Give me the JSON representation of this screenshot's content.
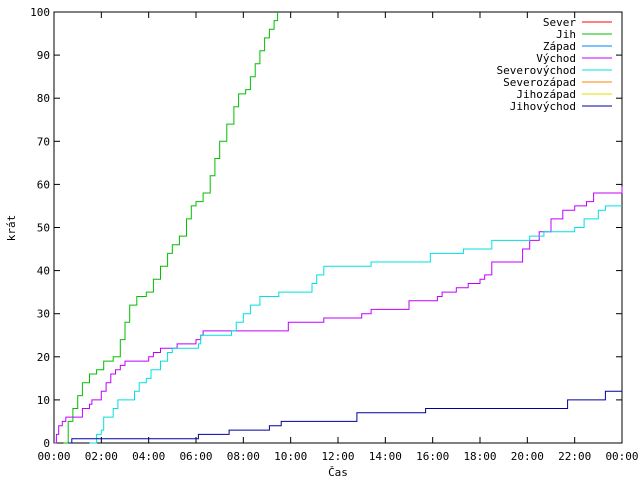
{
  "chart_data": {
    "type": "line",
    "title": "",
    "xlabel": "Čas",
    "ylabel": "krát",
    "xlim": [
      0,
      24
    ],
    "ylim": [
      0,
      100
    ],
    "x_ticks": [
      "00:00",
      "02:00",
      "04:00",
      "06:00",
      "08:00",
      "10:00",
      "12:00",
      "14:00",
      "16:00",
      "18:00",
      "20:00",
      "22:00",
      "00:00"
    ],
    "y_ticks": [
      0,
      10,
      20,
      30,
      40,
      50,
      60,
      70,
      80,
      90,
      100
    ],
    "grid": false,
    "legend_position": "top-right",
    "series": [
      {
        "name": "Sever",
        "color": "#ff0000",
        "points": []
      },
      {
        "name": "Jih",
        "color": "#00c000",
        "points": [
          [
            0.4,
            0
          ],
          [
            0.6,
            5
          ],
          [
            0.8,
            8
          ],
          [
            1.0,
            11
          ],
          [
            1.2,
            14
          ],
          [
            1.5,
            16
          ],
          [
            1.8,
            17
          ],
          [
            2.1,
            19
          ],
          [
            2.5,
            20
          ],
          [
            2.8,
            24
          ],
          [
            3.0,
            28
          ],
          [
            3.2,
            32
          ],
          [
            3.5,
            34
          ],
          [
            3.9,
            35
          ],
          [
            4.2,
            38
          ],
          [
            4.5,
            41
          ],
          [
            4.8,
            44
          ],
          [
            5.0,
            46
          ],
          [
            5.3,
            48
          ],
          [
            5.6,
            52
          ],
          [
            5.8,
            55
          ],
          [
            6.0,
            56
          ],
          [
            6.3,
            58
          ],
          [
            6.6,
            62
          ],
          [
            6.8,
            66
          ],
          [
            7.0,
            70
          ],
          [
            7.3,
            74
          ],
          [
            7.6,
            78
          ],
          [
            7.8,
            81
          ],
          [
            8.1,
            82
          ],
          [
            8.3,
            85
          ],
          [
            8.5,
            88
          ],
          [
            8.7,
            91
          ],
          [
            8.9,
            94
          ],
          [
            9.1,
            96
          ],
          [
            9.3,
            98
          ],
          [
            9.45,
            100
          ]
        ]
      },
      {
        "name": "Západ",
        "color": "#0080ff",
        "points": []
      },
      {
        "name": "Východ",
        "color": "#c000ff",
        "points": [
          [
            0.0,
            0
          ],
          [
            0.1,
            2
          ],
          [
            0.2,
            4
          ],
          [
            0.35,
            5
          ],
          [
            0.5,
            6
          ],
          [
            1.0,
            6
          ],
          [
            1.2,
            8
          ],
          [
            1.5,
            9
          ],
          [
            1.6,
            10
          ],
          [
            2.0,
            12
          ],
          [
            2.2,
            14
          ],
          [
            2.4,
            16
          ],
          [
            2.6,
            17
          ],
          [
            2.8,
            18
          ],
          [
            3.0,
            19
          ],
          [
            3.8,
            19
          ],
          [
            4.0,
            20
          ],
          [
            4.2,
            21
          ],
          [
            4.5,
            22
          ],
          [
            5.0,
            22
          ],
          [
            5.2,
            23
          ],
          [
            6.0,
            24
          ],
          [
            6.2,
            25
          ],
          [
            6.3,
            26
          ],
          [
            9.8,
            26
          ],
          [
            9.9,
            28
          ],
          [
            11.2,
            28
          ],
          [
            11.4,
            29
          ],
          [
            12.8,
            29
          ],
          [
            13.0,
            30
          ],
          [
            13.4,
            31
          ],
          [
            14.8,
            31
          ],
          [
            15.0,
            33
          ],
          [
            16.2,
            34
          ],
          [
            16.4,
            35
          ],
          [
            17.0,
            36
          ],
          [
            17.5,
            37
          ],
          [
            18.0,
            38
          ],
          [
            18.2,
            39
          ],
          [
            18.5,
            42
          ],
          [
            19.6,
            42
          ],
          [
            19.8,
            45
          ],
          [
            20.1,
            47
          ],
          [
            20.5,
            49
          ],
          [
            21.0,
            52
          ],
          [
            21.5,
            54
          ],
          [
            22.0,
            55
          ],
          [
            22.5,
            56
          ],
          [
            22.8,
            58
          ],
          [
            24.0,
            59.5
          ]
        ]
      },
      {
        "name": "Severovýchod",
        "color": "#00e0e0",
        "points": [
          [
            1.5,
            0
          ],
          [
            1.8,
            2
          ],
          [
            2.0,
            3
          ],
          [
            2.1,
            6
          ],
          [
            2.5,
            8
          ],
          [
            2.7,
            10
          ],
          [
            3.2,
            10
          ],
          [
            3.4,
            12
          ],
          [
            3.6,
            14
          ],
          [
            3.9,
            15
          ],
          [
            4.1,
            17
          ],
          [
            4.5,
            19
          ],
          [
            4.8,
            21
          ],
          [
            5.0,
            22
          ],
          [
            5.8,
            22
          ],
          [
            6.1,
            23
          ],
          [
            6.2,
            25
          ],
          [
            7.5,
            26
          ],
          [
            7.7,
            28
          ],
          [
            8.0,
            30
          ],
          [
            8.3,
            32
          ],
          [
            8.7,
            34
          ],
          [
            9.2,
            34
          ],
          [
            9.5,
            35
          ],
          [
            10.7,
            35
          ],
          [
            10.9,
            37
          ],
          [
            11.1,
            39
          ],
          [
            11.4,
            41
          ],
          [
            13.2,
            41
          ],
          [
            13.4,
            42
          ],
          [
            15.6,
            42
          ],
          [
            15.9,
            44
          ],
          [
            17.0,
            44
          ],
          [
            17.3,
            45
          ],
          [
            18.0,
            45
          ],
          [
            18.5,
            47
          ],
          [
            19.8,
            47
          ],
          [
            20.1,
            48
          ],
          [
            20.7,
            49
          ],
          [
            21.7,
            49
          ],
          [
            22.0,
            50
          ],
          [
            22.4,
            52
          ],
          [
            23.0,
            54
          ],
          [
            23.3,
            55
          ],
          [
            24.0,
            55
          ]
        ]
      },
      {
        "name": "Severozápad",
        "color": "#ff8000",
        "points": []
      },
      {
        "name": "Jihozápad",
        "color": "#e0e000",
        "points": []
      },
      {
        "name": "Jihovýchod",
        "color": "#0000a0",
        "points": [
          [
            0.6,
            0
          ],
          [
            0.75,
            1
          ],
          [
            6.0,
            1
          ],
          [
            6.1,
            2
          ],
          [
            7.3,
            2
          ],
          [
            7.4,
            3
          ],
          [
            9.0,
            3
          ],
          [
            9.1,
            4
          ],
          [
            9.5,
            4
          ],
          [
            9.6,
            5
          ],
          [
            12.7,
            5
          ],
          [
            12.8,
            7
          ],
          [
            15.6,
            7
          ],
          [
            15.7,
            8
          ],
          [
            21.6,
            8
          ],
          [
            21.7,
            10
          ],
          [
            23.2,
            10
          ],
          [
            23.3,
            12
          ],
          [
            24.0,
            12
          ]
        ]
      }
    ]
  }
}
